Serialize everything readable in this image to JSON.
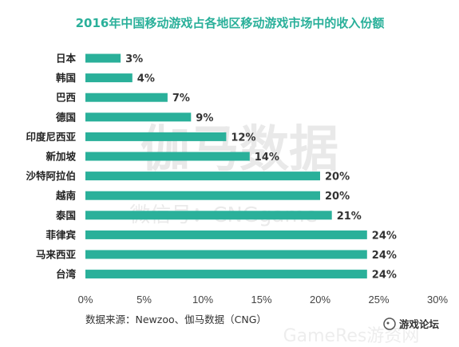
{
  "chart_data": {
    "type": "bar",
    "orientation": "horizontal",
    "title": "2016年中国移动游戏占各地区移动游戏市场中的收入份额",
    "categories": [
      "日本",
      "韩国",
      "巴西",
      "德国",
      "印度尼西亚",
      "新加坡",
      "沙特阿拉伯",
      "越南",
      "泰国",
      "菲律宾",
      "马来西亚",
      "台湾"
    ],
    "values": [
      3,
      4,
      7,
      9,
      12,
      14,
      20,
      20,
      21,
      24,
      24,
      24
    ],
    "value_labels": [
      "3%",
      "4%",
      "7%",
      "9%",
      "12%",
      "14%",
      "20%",
      "20%",
      "21%",
      "24%",
      "24%",
      "24%"
    ],
    "x_ticks": [
      "0%",
      "5%",
      "10%",
      "15%",
      "20%",
      "25%",
      "30%"
    ],
    "xlim": [
      0,
      30
    ],
    "grid": false,
    "bar_color": "#2ab09a",
    "source": "数据来源：Newzoo、伽马数据（CNG）"
  },
  "watermarks": {
    "main": "伽马数据",
    "sub": "微信号：CNGgame",
    "corner": "GameRes游资网",
    "brand": "游戏论坛"
  }
}
